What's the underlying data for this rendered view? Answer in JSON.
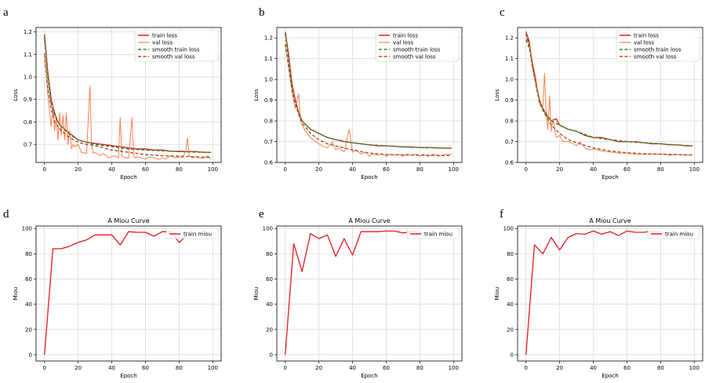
{
  "colors": {
    "train": "#e41a1c",
    "val": "#ff7f50",
    "smooth_train": "#228b22",
    "smooth_val": "#a0522d",
    "grid": "#d0d0d0"
  },
  "chart_data": [
    {
      "type": "line",
      "letter": "a",
      "title": "",
      "xlabel": "Epoch",
      "ylabel": "Loss",
      "xlim": [
        -5,
        105
      ],
      "ylim": [
        0.62,
        1.22
      ],
      "xticks": [
        0,
        20,
        40,
        60,
        80,
        100
      ],
      "yticks": [
        0.7,
        0.8,
        0.9,
        1.0,
        1.1,
        1.2
      ],
      "ytick_labels": [
        "0.7",
        "0.8",
        "0.9",
        "1.0",
        "1.1",
        "1.2"
      ],
      "grid": true,
      "legend": "top-right",
      "series": [
        {
          "name": "train loss",
          "style": "train",
          "x": [
            0,
            2,
            4,
            6,
            8,
            10,
            15,
            20,
            25,
            30,
            35,
            40,
            45,
            50,
            55,
            60,
            65,
            70,
            75,
            80,
            85,
            90,
            95,
            99
          ],
          "y": [
            1.19,
            1.02,
            0.9,
            0.84,
            0.8,
            0.78,
            0.75,
            0.72,
            0.71,
            0.705,
            0.7,
            0.695,
            0.69,
            0.685,
            0.68,
            0.68,
            0.675,
            0.675,
            0.67,
            0.67,
            0.668,
            0.668,
            0.665,
            0.665
          ]
        },
        {
          "name": "val loss",
          "style": "val",
          "x": [
            0,
            2,
            4,
            5,
            6,
            7,
            8,
            9,
            10,
            11,
            12,
            13,
            14,
            15,
            16,
            17,
            18,
            20,
            22,
            25,
            27,
            28,
            29,
            30,
            33,
            35,
            38,
            40,
            42,
            44,
            45,
            46,
            48,
            50,
            52,
            53,
            54,
            55,
            58,
            60,
            62,
            65,
            68,
            70,
            72,
            75,
            78,
            80,
            82,
            84,
            85,
            86,
            88,
            90,
            92,
            95,
            97,
            99
          ],
          "y": [
            1.11,
            0.92,
            0.78,
            0.88,
            0.76,
            0.82,
            0.72,
            0.84,
            0.74,
            0.83,
            0.72,
            0.84,
            0.7,
            0.76,
            0.68,
            0.7,
            0.69,
            0.7,
            0.665,
            0.66,
            0.96,
            0.7,
            0.66,
            0.665,
            0.65,
            0.66,
            0.64,
            0.645,
            0.65,
            0.64,
            0.82,
            0.65,
            0.64,
            0.64,
            0.82,
            0.65,
            0.64,
            0.645,
            0.64,
            0.635,
            0.645,
            0.64,
            0.635,
            0.64,
            0.635,
            0.65,
            0.64,
            0.645,
            0.64,
            0.67,
            0.73,
            0.65,
            0.64,
            0.645,
            0.64,
            0.64,
            0.65,
            0.635
          ]
        },
        {
          "name": "smooth train loss",
          "style": "smooth_train",
          "x": [
            0,
            2,
            4,
            6,
            8,
            10,
            15,
            20,
            25,
            30,
            40,
            50,
            60,
            70,
            80,
            90,
            99
          ],
          "y": [
            1.18,
            1.0,
            0.88,
            0.83,
            0.8,
            0.78,
            0.745,
            0.72,
            0.71,
            0.7,
            0.69,
            0.68,
            0.675,
            0.672,
            0.668,
            0.666,
            0.665
          ]
        },
        {
          "name": "smooth val loss",
          "style": "smooth_val",
          "x": [
            0,
            2,
            4,
            6,
            8,
            10,
            15,
            20,
            25,
            30,
            40,
            50,
            60,
            70,
            80,
            90,
            99
          ],
          "y": [
            1.1,
            0.95,
            0.86,
            0.8,
            0.78,
            0.76,
            0.73,
            0.71,
            0.7,
            0.695,
            0.675,
            0.665,
            0.655,
            0.65,
            0.648,
            0.645,
            0.642
          ]
        }
      ]
    },
    {
      "type": "line",
      "letter": "b",
      "title": "",
      "xlabel": "Epoch",
      "ylabel": "Loss",
      "xlim": [
        -5,
        105
      ],
      "ylim": [
        0.6,
        1.25
      ],
      "xticks": [
        0,
        20,
        40,
        60,
        80,
        100
      ],
      "yticks": [
        0.6,
        0.7,
        0.8,
        0.9,
        1.0,
        1.1,
        1.2
      ],
      "ytick_labels": [
        "0.6",
        "0.7",
        "0.8",
        "0.9",
        "1.0",
        "1.1",
        "1.2"
      ],
      "grid": true,
      "legend": "top-right",
      "series": [
        {
          "name": "train loss",
          "style": "train",
          "x": [
            0,
            2,
            4,
            6,
            8,
            10,
            15,
            20,
            25,
            30,
            35,
            40,
            45,
            50,
            55,
            60,
            65,
            70,
            75,
            80,
            85,
            90,
            95,
            99
          ],
          "y": [
            1.23,
            1.12,
            0.98,
            0.9,
            0.84,
            0.8,
            0.76,
            0.74,
            0.72,
            0.71,
            0.7,
            0.695,
            0.69,
            0.685,
            0.68,
            0.68,
            0.678,
            0.675,
            0.675,
            0.672,
            0.672,
            0.67,
            0.67,
            0.668
          ]
        },
        {
          "name": "val loss",
          "style": "val",
          "x": [
            0,
            2,
            4,
            6,
            8,
            9,
            10,
            12,
            15,
            18,
            20,
            22,
            25,
            28,
            30,
            32,
            35,
            38,
            40,
            42,
            45,
            48,
            50,
            52,
            55,
            58,
            60,
            62,
            65,
            68,
            70,
            72,
            75,
            78,
            80,
            82,
            85,
            88,
            90,
            92,
            95,
            97,
            99
          ],
          "y": [
            1.17,
            1.06,
            0.94,
            0.86,
            0.93,
            0.8,
            0.78,
            0.75,
            0.72,
            0.7,
            0.69,
            0.68,
            0.67,
            0.7,
            0.66,
            0.67,
            0.65,
            0.76,
            0.65,
            0.66,
            0.64,
            0.65,
            0.63,
            0.64,
            0.635,
            0.64,
            0.63,
            0.64,
            0.635,
            0.64,
            0.63,
            0.64,
            0.635,
            0.64,
            0.63,
            0.64,
            0.63,
            0.64,
            0.635,
            0.63,
            0.64,
            0.635,
            0.64
          ]
        },
        {
          "name": "smooth train loss",
          "style": "smooth_train",
          "x": [
            0,
            2,
            4,
            6,
            8,
            10,
            15,
            20,
            25,
            30,
            40,
            50,
            60,
            70,
            80,
            90,
            99
          ],
          "y": [
            1.22,
            1.1,
            0.97,
            0.89,
            0.84,
            0.8,
            0.76,
            0.74,
            0.72,
            0.71,
            0.695,
            0.685,
            0.68,
            0.675,
            0.672,
            0.67,
            0.668
          ]
        },
        {
          "name": "smooth val loss",
          "style": "smooth_val",
          "x": [
            0,
            2,
            4,
            6,
            8,
            10,
            15,
            20,
            25,
            30,
            40,
            50,
            60,
            70,
            80,
            90,
            99
          ],
          "y": [
            1.17,
            1.06,
            0.95,
            0.88,
            0.83,
            0.79,
            0.74,
            0.71,
            0.69,
            0.68,
            0.66,
            0.645,
            0.638,
            0.636,
            0.635,
            0.634,
            0.634
          ]
        }
      ]
    },
    {
      "type": "line",
      "letter": "c",
      "title": "",
      "xlabel": "Epoch",
      "ylabel": "Loss",
      "xlim": [
        -5,
        105
      ],
      "ylim": [
        0.6,
        1.25
      ],
      "xticks": [
        0,
        20,
        40,
        60,
        80,
        100
      ],
      "yticks": [
        0.6,
        0.7,
        0.8,
        0.9,
        1.0,
        1.1,
        1.2
      ],
      "ytick_labels": [
        "0.6",
        "0.7",
        "0.8",
        "0.9",
        "1.0",
        "1.1",
        "1.2"
      ],
      "grid": true,
      "legend": "top-right",
      "series": [
        {
          "name": "train loss",
          "style": "train",
          "x": [
            0,
            2,
            4,
            6,
            8,
            10,
            12,
            15,
            18,
            20,
            25,
            30,
            35,
            40,
            45,
            50,
            55,
            60,
            65,
            70,
            75,
            80,
            85,
            90,
            95,
            99
          ],
          "y": [
            1.23,
            1.18,
            1.06,
            0.98,
            0.9,
            0.86,
            0.83,
            0.8,
            0.81,
            0.78,
            0.76,
            0.75,
            0.73,
            0.72,
            0.72,
            0.71,
            0.7,
            0.7,
            0.7,
            0.695,
            0.69,
            0.69,
            0.685,
            0.685,
            0.68,
            0.68
          ]
        },
        {
          "name": "val loss",
          "style": "val",
          "x": [
            0,
            2,
            4,
            6,
            8,
            10,
            11,
            12,
            13,
            14,
            15,
            16,
            18,
            20,
            22,
            25,
            28,
            30,
            32,
            35,
            38,
            40,
            45,
            50,
            55,
            60,
            65,
            70,
            75,
            80,
            85,
            90,
            95,
            99
          ],
          "y": [
            1.2,
            1.17,
            1.08,
            1.0,
            0.88,
            0.87,
            1.03,
            0.83,
            0.76,
            0.92,
            0.75,
            0.81,
            0.72,
            0.73,
            0.7,
            0.7,
            0.69,
            0.68,
            0.7,
            0.67,
            0.66,
            0.665,
            0.655,
            0.65,
            0.645,
            0.645,
            0.64,
            0.64,
            0.64,
            0.64,
            0.635,
            0.638,
            0.635,
            0.636
          ]
        },
        {
          "name": "smooth train loss",
          "style": "smooth_train",
          "x": [
            0,
            2,
            4,
            6,
            8,
            10,
            15,
            20,
            25,
            30,
            40,
            50,
            60,
            70,
            80,
            90,
            99
          ],
          "y": [
            1.22,
            1.16,
            1.05,
            0.97,
            0.9,
            0.86,
            0.8,
            0.78,
            0.76,
            0.75,
            0.72,
            0.71,
            0.7,
            0.695,
            0.69,
            0.684,
            0.68
          ]
        },
        {
          "name": "smooth val loss",
          "style": "smooth_val",
          "x": [
            0,
            2,
            4,
            6,
            8,
            10,
            15,
            20,
            25,
            30,
            40,
            50,
            60,
            70,
            80,
            90,
            99
          ],
          "y": [
            1.19,
            1.15,
            1.06,
            0.97,
            0.89,
            0.85,
            0.78,
            0.74,
            0.71,
            0.695,
            0.67,
            0.655,
            0.647,
            0.642,
            0.64,
            0.638,
            0.636
          ]
        }
      ]
    },
    {
      "type": "line",
      "letter": "d",
      "title": "A Miou Curve",
      "xlabel": "Epoch",
      "ylabel": "Miou",
      "xlim": [
        -5,
        105
      ],
      "ylim": [
        -5,
        102
      ],
      "xticks": [
        0,
        20,
        40,
        60,
        80,
        100
      ],
      "yticks": [
        0,
        20,
        40,
        60,
        80,
        100
      ],
      "ytick_labels": [
        "0",
        "20",
        "40",
        "60",
        "80",
        "100"
      ],
      "grid": true,
      "legend": "top-right",
      "series": [
        {
          "name": "train miou",
          "style": "train",
          "x": [
            0,
            5,
            10,
            15,
            20,
            25,
            30,
            35,
            40,
            45,
            50,
            55,
            60,
            65,
            70,
            75,
            80,
            85
          ],
          "y": [
            0,
            84,
            84,
            86,
            89,
            91,
            95,
            95,
            95,
            87,
            97.5,
            97,
            97,
            94,
            97.5,
            97.5,
            89,
            95
          ]
        }
      ]
    },
    {
      "type": "line",
      "letter": "e",
      "title": "A Miou Curve",
      "xlabel": "Epoch",
      "ylabel": "Miou",
      "xlim": [
        -5,
        105
      ],
      "ylim": [
        -5,
        102
      ],
      "xticks": [
        0,
        20,
        40,
        60,
        80,
        100
      ],
      "yticks": [
        0,
        20,
        40,
        60,
        80,
        100
      ],
      "ytick_labels": [
        "0",
        "20",
        "40",
        "60",
        "80",
        "100"
      ],
      "grid": true,
      "legend": "top-right",
      "series": [
        {
          "name": "train miou",
          "style": "train",
          "x": [
            0,
            5,
            10,
            15,
            20,
            25,
            30,
            35,
            40,
            45,
            50,
            55,
            60,
            65,
            70,
            75,
            80,
            85
          ],
          "y": [
            0,
            88,
            66,
            96,
            92,
            95,
            78,
            92,
            79,
            97.5,
            97.5,
            97.5,
            98,
            98,
            96.5,
            97.5,
            97,
            96
          ]
        }
      ]
    },
    {
      "type": "line",
      "letter": "f",
      "title": "A Miou Curve",
      "xlabel": "Epoch",
      "ylabel": "Miou",
      "xlim": [
        -5,
        105
      ],
      "ylim": [
        -5,
        102
      ],
      "xticks": [
        0,
        20,
        40,
        60,
        80,
        100
      ],
      "yticks": [
        0,
        20,
        40,
        60,
        80,
        100
      ],
      "ytick_labels": [
        "0",
        "20",
        "40",
        "60",
        "80",
        "100"
      ],
      "grid": true,
      "legend": "top-right",
      "series": [
        {
          "name": "train miou",
          "style": "train",
          "x": [
            0,
            5,
            10,
            15,
            20,
            25,
            30,
            35,
            40,
            45,
            50,
            55,
            60,
            65,
            70,
            75,
            80,
            85
          ],
          "y": [
            0,
            87,
            80,
            93,
            83,
            93,
            96,
            95.5,
            98,
            95.5,
            97.5,
            94.5,
            98,
            97,
            97,
            98,
            97,
            96
          ]
        }
      ]
    }
  ]
}
